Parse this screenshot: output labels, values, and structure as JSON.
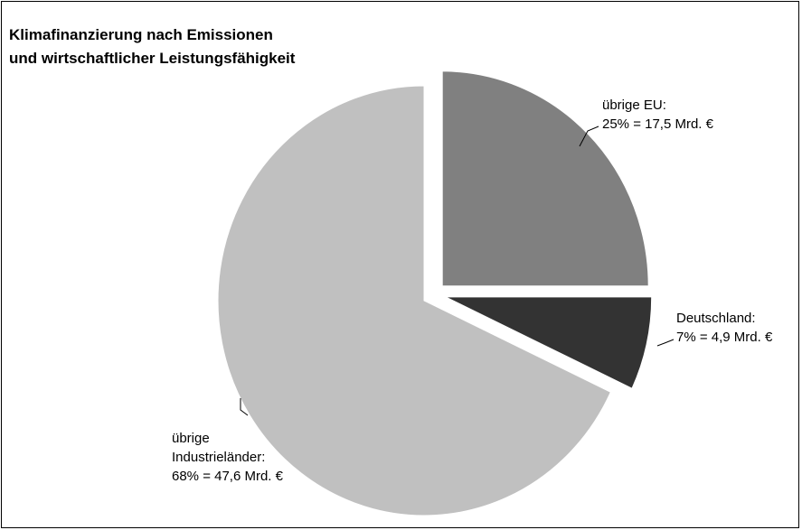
{
  "chart_data": {
    "type": "pie",
    "title": [
      "Klimafinanzierung nach Emissionen",
      "und wirtschaftlicher Leistungsfähigkeit"
    ],
    "categories": [
      [
        "übrige EU:"
      ],
      [
        "Deutschland:"
      ],
      [
        "übrige",
        "Industrieländer:"
      ]
    ],
    "values": [
      25,
      7,
      68
    ],
    "value_labels": [
      "25% = 17,5 Mrd. €",
      "7% = 4,9 Mrd. €",
      "68% = 47,6 Mrd. €"
    ],
    "colors": [
      "#808080",
      "#333333",
      "#c0c0c0"
    ]
  }
}
